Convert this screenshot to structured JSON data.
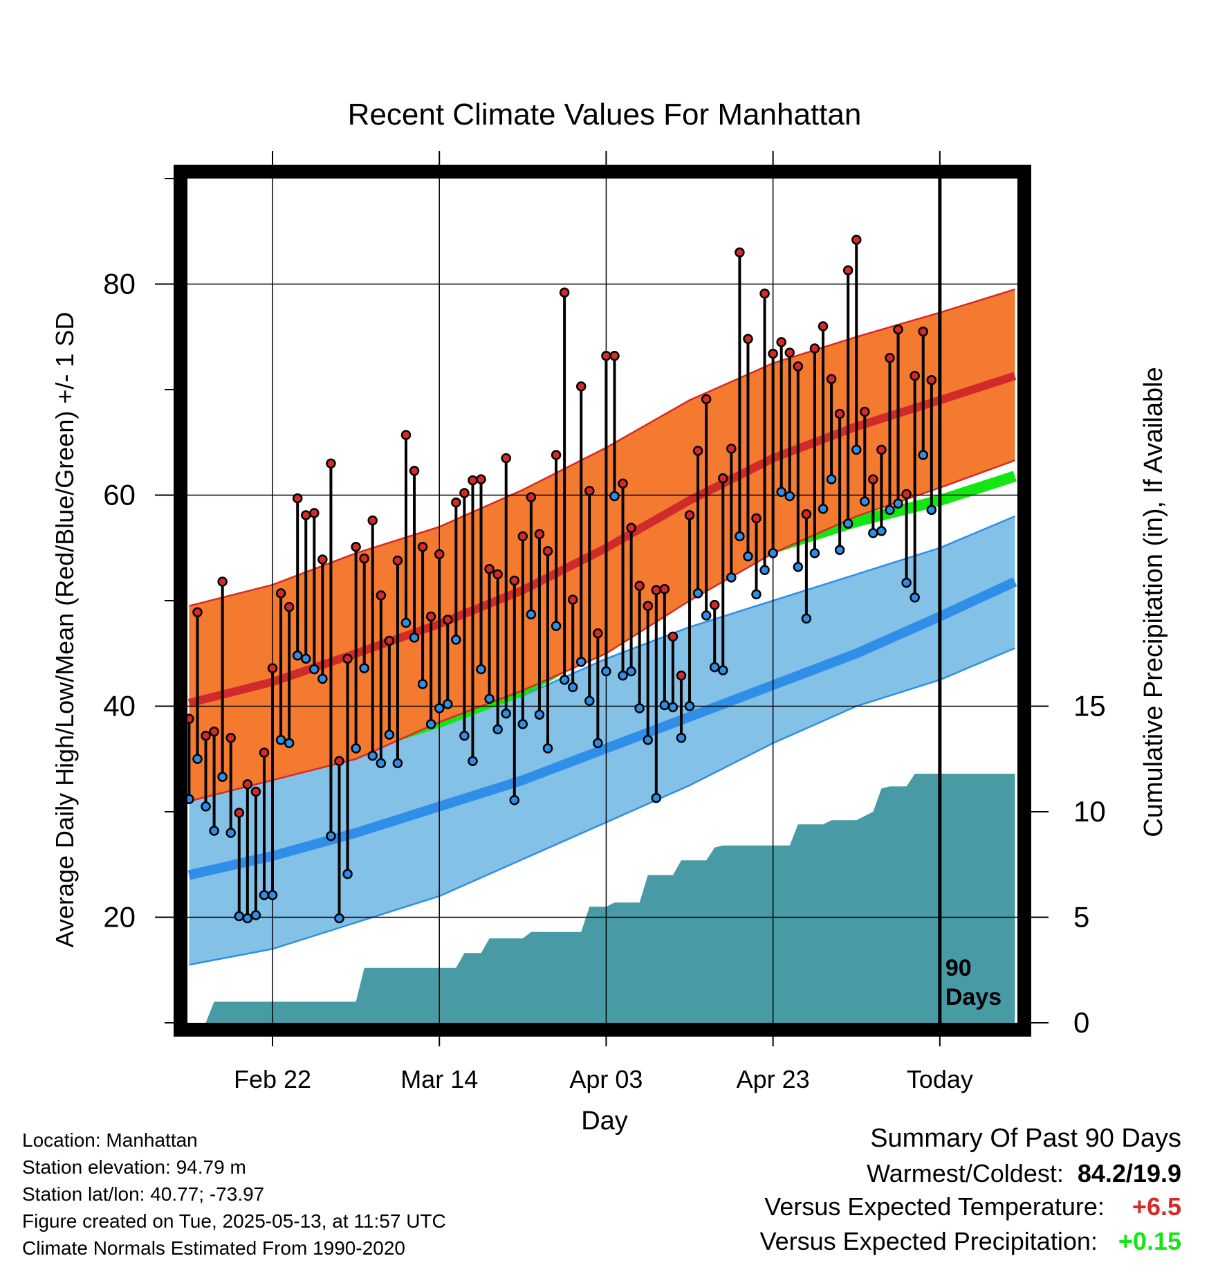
{
  "chart_data": {
    "type": "line",
    "title": "Recent Climate Values For Manhattan",
    "xlabel": "Day",
    "ylabel_left": "Average Daily High/Low/Mean (Red/Blue/Green) +/- 1 SD",
    "ylabel_right": "Cumulative Precipitation (in), If Available",
    "x_ticks": [
      {
        "day": 10,
        "label": "Feb 22"
      },
      {
        "day": 30,
        "label": "Mar 14"
      },
      {
        "day": 50,
        "label": "Apr 03"
      },
      {
        "day": 70,
        "label": "Apr 23"
      },
      {
        "day": 90,
        "label": "Today"
      }
    ],
    "xlim": [
      -0.2,
      99.3
    ],
    "ylim_left": [
      10,
      90
    ],
    "yticks_left": [
      20,
      40,
      60,
      80
    ],
    "ylim_right": [
      0,
      40
    ],
    "yticks_right": [
      0,
      5,
      10,
      15
    ],
    "today_marker": {
      "day": 90,
      "label_line1": "90",
      "label_line2": "Days"
    },
    "colors": {
      "high_band": "#f47a30",
      "high_edge": "#d62a26",
      "high_mean": "#d02a2a",
      "low_band": "#84c1e7",
      "low_edge": "#2f8ee8",
      "low_mean": "#2f8ee8",
      "mean_line": "#14e614",
      "precip": "#489ba4",
      "high_dot": "#d62a26",
      "low_dot": "#2f8ee8"
    },
    "normals_days": [
      0,
      10,
      20,
      30,
      40,
      50,
      60,
      70,
      80,
      90,
      99
    ],
    "normal_high_upper": [
      49.5,
      51.5,
      54.5,
      57.0,
      60.5,
      64.5,
      69.0,
      72.5,
      75.0,
      77.3,
      79.5
    ],
    "normal_high_mean": [
      40.3,
      42.3,
      45.0,
      47.8,
      51.0,
      55.0,
      59.5,
      63.5,
      66.5,
      69.0,
      71.3
    ],
    "normal_high_lower": [
      31.0,
      33.0,
      35.0,
      38.5,
      41.5,
      45.0,
      50.0,
      54.5,
      58.0,
      60.7,
      63.3
    ],
    "normal_mean": [
      32.5,
      34.0,
      36.0,
      38.5,
      41.5,
      46.0,
      51.0,
      55.0,
      57.5,
      59.5,
      61.8
    ],
    "normal_low_upper": [
      32.8,
      34.5,
      36.5,
      38.5,
      41.0,
      44.5,
      47.5,
      50.0,
      52.5,
      55.0,
      58.0
    ],
    "normal_low_mean": [
      24.0,
      25.8,
      28.0,
      30.5,
      33.0,
      36.0,
      39.0,
      42.0,
      45.0,
      48.5,
      51.8
    ],
    "normal_low_lower": [
      15.5,
      17.0,
      19.5,
      22.0,
      25.5,
      29.0,
      32.5,
      36.5,
      40.0,
      42.5,
      45.5
    ],
    "daily_days": [
      0,
      1,
      2,
      3,
      4,
      5,
      6,
      7,
      8,
      9,
      10,
      11,
      12,
      13,
      14,
      15,
      16,
      17,
      18,
      19,
      20,
      21,
      22,
      23,
      24,
      25,
      26,
      27,
      28,
      29,
      30,
      31,
      32,
      33,
      34,
      35,
      36,
      37,
      38,
      39,
      40,
      41,
      42,
      43,
      44,
      45,
      46,
      47,
      48,
      49,
      50,
      51,
      52,
      53,
      54,
      55,
      56,
      57,
      58,
      59,
      60,
      61,
      62,
      63,
      64,
      65,
      66,
      67,
      68,
      69,
      70,
      71,
      72,
      73,
      74,
      75,
      76,
      77,
      78,
      79,
      80,
      81,
      82,
      83,
      84,
      85,
      86,
      87,
      88,
      89
    ],
    "daily_high": [
      38.8,
      48.9,
      37.2,
      37.6,
      51.8,
      37.0,
      29.9,
      32.6,
      31.9,
      35.6,
      43.6,
      50.7,
      49.4,
      59.7,
      58.1,
      58.3,
      53.9,
      63.0,
      34.8,
      44.5,
      55.1,
      54.0,
      57.6,
      50.5,
      46.2,
      53.8,
      65.7,
      62.3,
      55.1,
      48.5,
      54.4,
      48.2,
      59.3,
      60.2,
      61.4,
      61.5,
      53.0,
      52.5,
      63.5,
      51.9,
      56.1,
      59.8,
      56.3,
      54.7,
      63.8,
      79.2,
      50.1,
      70.3,
      60.4,
      46.9,
      73.2,
      73.2,
      61.1,
      56.9,
      51.4,
      49.5,
      51.0,
      51.1,
      46.6,
      42.9,
      58.1,
      64.2,
      69.1,
      49.6,
      61.6,
      64.4,
      83.0,
      74.8,
      57.8,
      79.1,
      73.4,
      74.5,
      73.5,
      72.2,
      58.2,
      73.9,
      76.0,
      71.0,
      67.7,
      81.3,
      84.2,
      67.9,
      61.5,
      64.3,
      73.0,
      75.7,
      60.1,
      71.3,
      75.5,
      70.9
    ],
    "daily_low": [
      31.2,
      35.0,
      30.5,
      28.2,
      33.3,
      28.0,
      20.1,
      19.9,
      20.2,
      22.1,
      22.1,
      36.8,
      36.5,
      44.8,
      44.5,
      43.5,
      42.6,
      27.7,
      19.9,
      24.1,
      36.0,
      43.6,
      35.3,
      34.6,
      37.3,
      34.6,
      47.9,
      46.5,
      42.1,
      38.3,
      39.8,
      40.2,
      46.3,
      37.2,
      34.8,
      43.5,
      40.7,
      37.8,
      39.3,
      31.1,
      38.3,
      48.7,
      39.2,
      36.0,
      47.6,
      42.5,
      41.8,
      44.2,
      40.5,
      36.5,
      43.3,
      59.9,
      42.9,
      43.3,
      39.8,
      36.8,
      31.3,
      40.1,
      39.9,
      37.0,
      40.0,
      50.7,
      48.6,
      43.7,
      43.4,
      52.2,
      56.1,
      54.2,
      50.6,
      52.9,
      54.5,
      60.3,
      59.9,
      53.2,
      48.3,
      54.5,
      58.7,
      61.5,
      54.8,
      57.3,
      64.3,
      59.4,
      56.4,
      56.6,
      58.6,
      59.2,
      51.7,
      50.3,
      63.8,
      58.6
    ],
    "precip_days": [
      0,
      2,
      3,
      20,
      21,
      32,
      33,
      35,
      36,
      40,
      41,
      47,
      48,
      50,
      51,
      54,
      55,
      58,
      59,
      62,
      63,
      64,
      65,
      72,
      73,
      76,
      77,
      80,
      81,
      82,
      83,
      84,
      86,
      87,
      90,
      99
    ],
    "precip_inches": [
      0,
      0,
      1.0,
      1.0,
      2.6,
      2.6,
      3.3,
      3.3,
      4.0,
      4.0,
      4.3,
      4.3,
      5.5,
      5.5,
      5.7,
      5.7,
      7.0,
      7.0,
      7.7,
      7.7,
      8.3,
      8.4,
      8.4,
      8.4,
      9.4,
      9.4,
      9.6,
      9.6,
      9.8,
      10.0,
      11.1,
      11.2,
      11.2,
      11.8,
      11.8,
      11.8
    ]
  },
  "info": {
    "location": "Location: Manhattan",
    "elevation": "Station elevation: 94.79 m",
    "latlon": "Station lat/lon: 40.77; -73.97",
    "created": "Figure created on Tue, 2025-05-13, at 11:57 UTC",
    "normals": "Climate Normals Estimated From 1990-2020"
  },
  "summary": {
    "heading": "Summary Of Past 90 Days",
    "warmest_coldest_label": "Warmest/Coldest:",
    "warmest_coldest_value": "84.2/19.9",
    "temp_label": "Versus Expected Temperature:",
    "temp_value": "+6.5",
    "temp_color": "#d62a26",
    "precip_label": "Versus Expected Precipitation:",
    "precip_value": "+0.15",
    "precip_color": "#14e614"
  }
}
